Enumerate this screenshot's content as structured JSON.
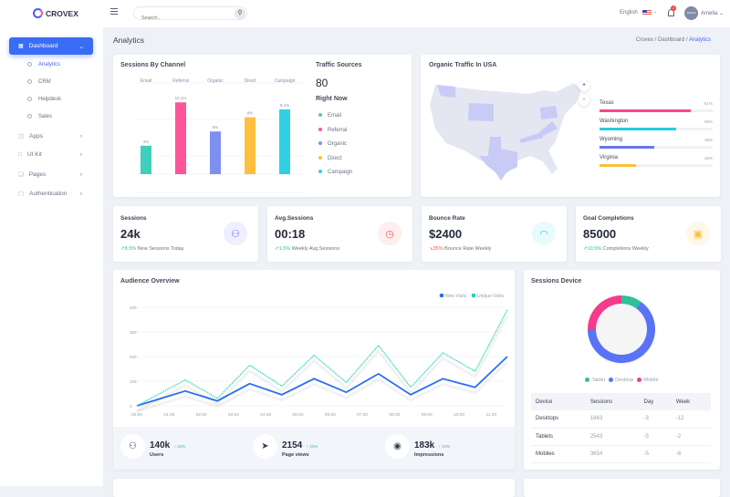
{
  "header": {
    "brand": "CROVEX",
    "search_placeholder": "Search..",
    "language": "English",
    "notification_count": "2",
    "user": "Amelia",
    "avatar_text": "100x100"
  },
  "sidebar": {
    "dashboard": "Dashboard",
    "subitems": [
      "Analytics",
      "CRM",
      "Helpdesk",
      "Sales"
    ],
    "items": [
      {
        "label": "Apps",
        "icon": "database-icon"
      },
      {
        "label": "UI Kit",
        "icon": "basket-icon"
      },
      {
        "label": "Pages",
        "icon": "pages-icon"
      },
      {
        "label": "Authentication",
        "icon": "lock-icon"
      }
    ]
  },
  "page": {
    "title": "Analytics",
    "breadcrumb": [
      "Crovex",
      "Dashboard",
      "Analytics"
    ]
  },
  "sessions_channel": {
    "title": "Sessions By Channel",
    "traffic_title": "Traffic Sources",
    "traffic_value": "80",
    "right_now": "Right Now"
  },
  "map": {
    "title": "Organic Traffic In USA",
    "zoom_in": "+",
    "zoom_out": "-",
    "states": [
      {
        "name": "Texas",
        "pct": "81%",
        "value": 81,
        "color": "#f9468f"
      },
      {
        "name": "Washington",
        "pct": "68%",
        "value": 68,
        "color": "#2bcbe0"
      },
      {
        "name": "Wyoming",
        "pct": "48%",
        "value": 48,
        "color": "#6a74e8"
      },
      {
        "name": "Virginia",
        "pct": "32%",
        "value": 32,
        "color": "#fbbf3c"
      }
    ]
  },
  "stats": [
    {
      "title": "Sessions",
      "value": "24k",
      "change": "8.5%",
      "note": "New Sessions Today",
      "trend": "up",
      "icon": "users-icon",
      "color": "#6a74e8",
      "bg": "#eeefff"
    },
    {
      "title": "Avg.Sessions",
      "value": "00:18",
      "change": "1.5%",
      "note": "Weekly Avg.Sessions",
      "trend": "up",
      "icon": "clock-icon",
      "color": "#f05a5a",
      "bg": "#feeeee"
    },
    {
      "title": "Bounce Rate",
      "value": "$2400",
      "change": "35%",
      "note": "Bounce Rate Weekly",
      "trend": "down",
      "icon": "gauge-icon",
      "color": "#2bcbe0",
      "bg": "#e8fbfc"
    },
    {
      "title": "Goal Completions",
      "value": "85000",
      "change": "10.5%",
      "note": "Completions Weekly",
      "trend": "up",
      "icon": "wallet-icon",
      "color": "#fbbf3c",
      "bg": "#fff7e8"
    }
  ],
  "audience": {
    "title": "Audience Overview",
    "footer": [
      {
        "value": "140k",
        "change": "21%",
        "label": "Users",
        "icon": "users-icon"
      },
      {
        "value": "2154",
        "change": "21%",
        "label": "Page views",
        "icon": "rocket-icon"
      },
      {
        "value": "183k",
        "change": "21%",
        "label": "Impressions",
        "icon": "eye-icon"
      }
    ]
  },
  "device": {
    "title": "Sessions Device",
    "table": {
      "headers": [
        "Device",
        "Sessions",
        "Day",
        "Week"
      ],
      "rows": [
        [
          "Desktops",
          "1843",
          "-3",
          "-12"
        ],
        [
          "Tablets",
          "2543",
          "-5",
          "-2"
        ],
        [
          "Mobiles",
          "3654",
          "-5",
          "-6"
        ]
      ]
    }
  },
  "chart_data": [
    {
      "type": "bar",
      "title": "Sessions By Channel",
      "categories": [
        "Email",
        "Referral",
        "Organic",
        "Direct",
        "Campaign"
      ],
      "values": [
        4,
        10.1,
        6,
        8,
        9.1
      ],
      "labels": [
        "4%",
        "10.1%",
        "6%",
        "8%",
        "9.1%"
      ],
      "colors": [
        "#3ecfbe",
        "#fd5597",
        "#7e8ff1",
        "#fdbf3f",
        "#2fd0e2"
      ],
      "grid": true
    },
    {
      "type": "line",
      "title": "Audience Overview",
      "x": [
        "00:00",
        "01:30",
        "02:30",
        "03:30",
        "04:30",
        "05:30",
        "06:30",
        "07:30",
        "08:30",
        "09:30",
        "10:30",
        "11:30"
      ],
      "xticks": [
        "00:00",
        "01:00",
        "02:00",
        "03:00",
        "04:00",
        "05:00",
        "06:00",
        "07:00",
        "08:00",
        "09:00",
        "10:00",
        "11:00"
      ],
      "yticks": [
        "0",
        "100",
        "200",
        "300",
        "400"
      ],
      "ylim": [
        0,
        400
      ],
      "legend": "top-right",
      "series": [
        {
          "name": "New Visits",
          "values": [
            0,
            60,
            20,
            90,
            45,
            110,
            55,
            130,
            45,
            110,
            75,
            200
          ],
          "color": "#2a6ef5"
        },
        {
          "name": "Unique Visits",
          "values": [
            0,
            105,
            30,
            165,
            80,
            205,
            95,
            245,
            75,
            215,
            140,
            390
          ],
          "color": "#1fd1b0"
        }
      ]
    },
    {
      "type": "pie",
      "title": "Sessions Device",
      "donut": true,
      "categories": [
        "Tablet",
        "Desktop",
        "Mobile"
      ],
      "values": [
        10,
        65,
        25
      ],
      "colors": [
        "#2ebf9b",
        "#5a73f6",
        "#f73a8c"
      ],
      "legend": "bottom"
    }
  ]
}
